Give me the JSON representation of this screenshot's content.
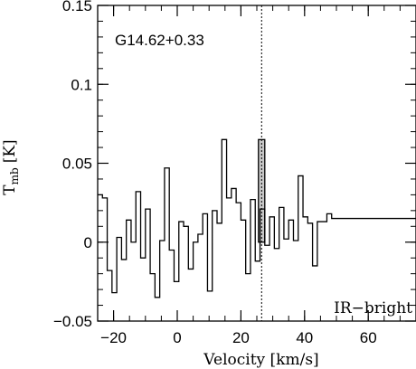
{
  "chart_data": {
    "type": "line",
    "title": "",
    "xlabel": "Velocity [km/s]",
    "ylabel_main": "T",
    "ylabel_sub": "mb",
    "ylabel_unit": "[K]",
    "xlim": [
      -25,
      75
    ],
    "ylim": [
      -0.05,
      0.15
    ],
    "x_ticks": [
      -20,
      0,
      20,
      40,
      60
    ],
    "y_ticks": [
      -0.05,
      0,
      0.05,
      0.1,
      0.15
    ],
    "y_tick_labels": [
      "−0.05",
      "0",
      "0.05",
      "0.1",
      "0.15"
    ],
    "x_tick_labels": [
      "−20",
      "0",
      "20",
      "40",
      "60"
    ],
    "source_label": "G14.62+0.33",
    "corner_label": "IR−bright",
    "reference_velocity": 26.5,
    "highlight": {
      "x0": 25.5,
      "x1": 27.5,
      "value": 0.065
    },
    "series": [
      {
        "step_width": 1.5,
        "x": [
          -24.25,
          -22.75,
          -21.25,
          -19.75,
          -18.25,
          -16.75,
          -15.25,
          -13.75,
          -12.25,
          -10.75,
          -9.25,
          -7.75,
          -6.25,
          -4.75,
          -3.25,
          -1.75,
          -0.25,
          1.25,
          2.75,
          4.25,
          5.75,
          7.25,
          8.75,
          10.25,
          11.75,
          13.25,
          14.75,
          16.25,
          17.75,
          19.25,
          20.75,
          22.25,
          23.75,
          25.25,
          26.75,
          28.25,
          29.75,
          31.25,
          32.75,
          34.25,
          35.75,
          37.25,
          38.75,
          40.25,
          41.75,
          43.25,
          44.75,
          46.25,
          47.75,
          49.25,
          50.75,
          52.25,
          53.75,
          55.25,
          56.75,
          58.25,
          59.75,
          61.25,
          62.75,
          64.25,
          65.75,
          67.25,
          68.75,
          70.25,
          71.75,
          73.25,
          74.75
        ],
        "values": [
          0.03,
          0.028,
          -0.018,
          -0.032,
          0.003,
          -0.011,
          0.014,
          0.0,
          0.032,
          -0.01,
          0.021,
          -0.02,
          -0.035,
          0.001,
          0.047,
          -0.005,
          -0.025,
          0.013,
          0.01,
          -0.017,
          0.0,
          0.005,
          0.018,
          -0.031,
          0.02,
          0.012,
          0.065,
          0.028,
          0.034,
          0.025,
          0.014,
          -0.02,
          0.027,
          -0.012,
          0.021,
          -0.002,
          0.016,
          -0.004,
          0.022,
          0.002,
          0.014,
          0.001,
          0.042,
          0.016,
          0.012,
          -0.015,
          0.013,
          0.013,
          0.018,
          0.015,
          0.015,
          0.015,
          0.015,
          0.015,
          0.015,
          0.015,
          0.015,
          0.015,
          0.015,
          0.015,
          0.015,
          0.015,
          0.015,
          0.015,
          0.015,
          0.015,
          0.015
        ]
      }
    ]
  }
}
